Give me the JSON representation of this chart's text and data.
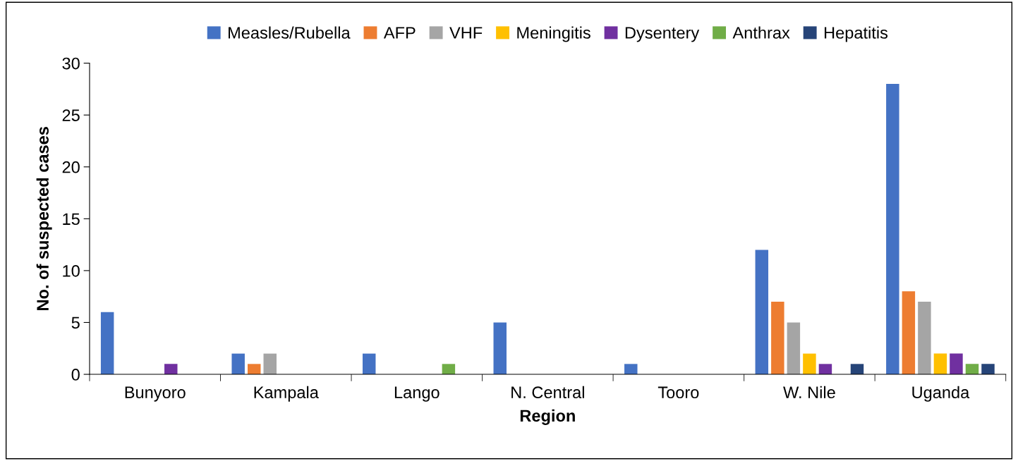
{
  "chart_data": {
    "type": "bar",
    "xlabel": "Region",
    "ylabel": "No. of suspected cases",
    "categories": [
      "Bunyoro",
      "Kampala",
      "Lango",
      "N. Central",
      "Tooro",
      "W. Nile",
      "Uganda"
    ],
    "series": [
      {
        "name": "Measles/Rubella",
        "color": "#4472c4",
        "values": [
          6,
          2,
          2,
          5,
          1,
          12,
          28
        ]
      },
      {
        "name": "AFP",
        "color": "#ed7d31",
        "values": [
          0,
          1,
          0,
          0,
          0,
          7,
          8
        ]
      },
      {
        "name": "VHF",
        "color": "#a5a5a5",
        "values": [
          0,
          2,
          0,
          0,
          0,
          5,
          7
        ]
      },
      {
        "name": "Meningitis",
        "color": "#ffc000",
        "values": [
          0,
          0,
          0,
          0,
          0,
          2,
          2
        ]
      },
      {
        "name": "Dysentery",
        "color": "#7030a0",
        "values": [
          1,
          0,
          0,
          0,
          0,
          1,
          2
        ]
      },
      {
        "name": "Anthrax",
        "color": "#70ad47",
        "values": [
          0,
          0,
          1,
          0,
          0,
          0,
          1
        ]
      },
      {
        "name": "Hepatitis",
        "color": "#264478",
        "values": [
          0,
          0,
          0,
          0,
          0,
          1,
          1
        ]
      }
    ],
    "ylim": [
      0,
      30
    ],
    "yticks": [
      0,
      5,
      10,
      15,
      20,
      25,
      30
    ],
    "grid": false,
    "legend": "top"
  }
}
